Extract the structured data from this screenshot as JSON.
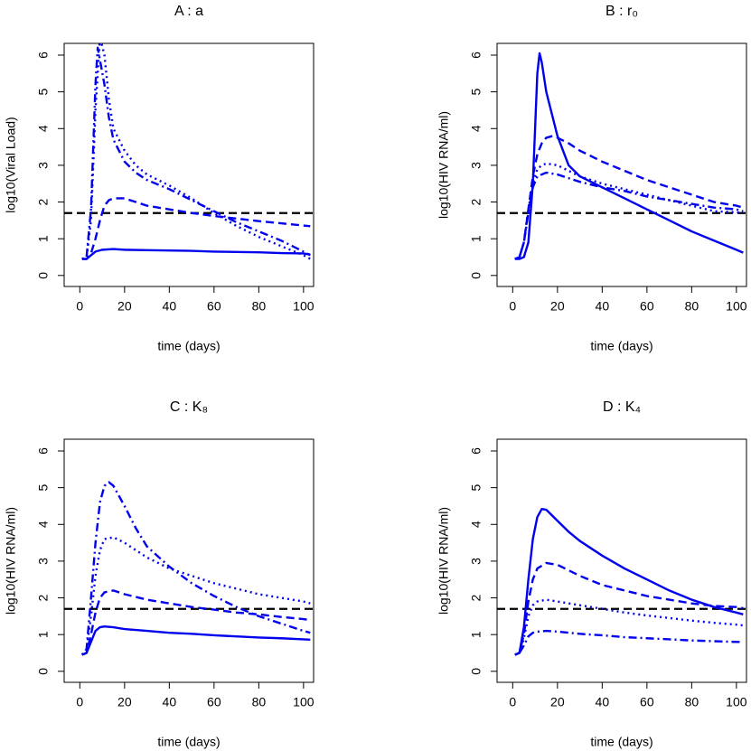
{
  "chart_data": [
    {
      "type": "line",
      "title": "A : a",
      "xlabel": "time (days)",
      "ylabel": "log10(Viral Load)",
      "xlim": [
        -7,
        104.5
      ],
      "ylim": [
        -0.3,
        6.32
      ],
      "xticks": [
        0,
        20,
        40,
        60,
        80,
        100
      ],
      "yticks": [
        0,
        1,
        2,
        3,
        4,
        5,
        6
      ],
      "hline": 1.7,
      "hline_color": "#000000",
      "series": [
        {
          "color": "#0000ee",
          "dash": "solid",
          "x": [
            1,
            3,
            5,
            7,
            10,
            15,
            20,
            30,
            40,
            50,
            60,
            70,
            80,
            90,
            100,
            103
          ],
          "values": [
            0.45,
            0.45,
            0.55,
            0.65,
            0.7,
            0.72,
            0.7,
            0.69,
            0.68,
            0.67,
            0.65,
            0.64,
            0.63,
            0.61,
            0.6,
            0.57
          ]
        },
        {
          "color": "#0000ee",
          "dash": "dashed",
          "x": [
            1,
            3,
            5,
            7,
            9,
            11,
            13,
            15,
            20,
            25,
            30,
            40,
            50,
            60,
            70,
            80,
            90,
            100,
            103
          ],
          "values": [
            0.45,
            0.45,
            0.6,
            1.0,
            1.5,
            1.9,
            2.05,
            2.1,
            2.1,
            2.0,
            1.9,
            1.8,
            1.7,
            1.62,
            1.55,
            1.48,
            1.42,
            1.36,
            1.34
          ]
        },
        {
          "color": "#0000ee",
          "dash": "dotted",
          "x": [
            1,
            3,
            5,
            7,
            9,
            11,
            13,
            15,
            20,
            25,
            30,
            40,
            50,
            60,
            70,
            80,
            90,
            100,
            103
          ],
          "values": [
            0.45,
            0.5,
            1.5,
            4.5,
            6.5,
            6.0,
            4.8,
            4.0,
            3.4,
            3.0,
            2.75,
            2.45,
            2.1,
            1.7,
            1.35,
            1.05,
            0.8,
            0.55,
            0.45
          ]
        },
        {
          "color": "#0000ee",
          "dash": "dotdash",
          "x": [
            1,
            3,
            5,
            7,
            8,
            11,
            13,
            15,
            20,
            25,
            30,
            40,
            50,
            60,
            70,
            80,
            90,
            100,
            103
          ],
          "values": [
            0.45,
            0.5,
            1.8,
            5.2,
            6.2,
            5.2,
            4.3,
            3.7,
            3.1,
            2.8,
            2.6,
            2.35,
            2.05,
            1.75,
            1.45,
            1.2,
            0.95,
            0.65,
            0.55
          ]
        }
      ]
    },
    {
      "type": "line",
      "title": "B : r₀",
      "xlabel": "time (days)",
      "ylabel": "log10(HIV RNA/ml)",
      "xlim": [
        -7,
        104.5
      ],
      "ylim": [
        -0.3,
        6.32
      ],
      "xticks": [
        0,
        20,
        40,
        60,
        80,
        100
      ],
      "yticks": [
        0,
        1,
        2,
        3,
        4,
        5,
        6
      ],
      "hline": 1.7,
      "hline_color": "#000000",
      "series": [
        {
          "color": "#0000ee",
          "dash": "solid",
          "x": [
            1,
            3,
            5,
            7,
            9,
            11,
            12,
            13,
            15,
            20,
            25,
            30,
            40,
            50,
            60,
            70,
            80,
            90,
            100,
            103
          ],
          "values": [
            0.45,
            0.45,
            0.5,
            0.9,
            2.5,
            5.5,
            6.05,
            5.8,
            5.0,
            3.8,
            3.0,
            2.7,
            2.4,
            2.1,
            1.8,
            1.5,
            1.2,
            0.95,
            0.7,
            0.62
          ]
        },
        {
          "color": "#0000ee",
          "dash": "dashed",
          "x": [
            1,
            3,
            5,
            7,
            9,
            11,
            13,
            15,
            18,
            20,
            25,
            30,
            40,
            50,
            60,
            70,
            80,
            90,
            100,
            103
          ],
          "values": [
            0.45,
            0.5,
            0.9,
            1.8,
            2.7,
            3.3,
            3.6,
            3.75,
            3.8,
            3.75,
            3.6,
            3.4,
            3.1,
            2.85,
            2.6,
            2.4,
            2.2,
            2.0,
            1.9,
            1.85
          ]
        },
        {
          "color": "#0000ee",
          "dash": "dotted",
          "x": [
            1,
            3,
            5,
            7,
            9,
            11,
            13,
            15,
            20,
            25,
            30,
            40,
            50,
            60,
            70,
            80,
            90,
            100,
            103
          ],
          "values": [
            0.45,
            0.5,
            0.9,
            1.8,
            2.5,
            2.9,
            3.0,
            3.05,
            3.0,
            2.85,
            2.7,
            2.5,
            2.35,
            2.2,
            2.05,
            1.9,
            1.75,
            1.72,
            1.7
          ]
        },
        {
          "color": "#0000ee",
          "dash": "dotdash",
          "x": [
            1,
            3,
            5,
            7,
            9,
            11,
            13,
            15,
            20,
            25,
            30,
            40,
            50,
            60,
            70,
            80,
            90,
            100,
            103
          ],
          "values": [
            0.45,
            0.5,
            0.9,
            1.7,
            2.4,
            2.7,
            2.75,
            2.8,
            2.75,
            2.65,
            2.55,
            2.4,
            2.3,
            2.15,
            2.05,
            1.95,
            1.85,
            1.8,
            1.75
          ]
        }
      ]
    },
    {
      "type": "line",
      "title": "C : K₈",
      "xlabel": "time (days)",
      "ylabel": "log10(HIV RNA/ml)",
      "xlim": [
        -7,
        104.5
      ],
      "ylim": [
        -0.3,
        6.32
      ],
      "xticks": [
        0,
        20,
        40,
        60,
        80,
        100
      ],
      "yticks": [
        0,
        1,
        2,
        3,
        4,
        5,
        6
      ],
      "hline": 1.7,
      "hline_color": "#000000",
      "series": [
        {
          "color": "#0000ee",
          "dash": "solid",
          "x": [
            1,
            3,
            5,
            7,
            9,
            11,
            15,
            20,
            30,
            40,
            50,
            60,
            70,
            80,
            90,
            100,
            103
          ],
          "values": [
            0.45,
            0.5,
            0.8,
            1.1,
            1.2,
            1.22,
            1.2,
            1.15,
            1.1,
            1.05,
            1.02,
            0.98,
            0.95,
            0.92,
            0.9,
            0.87,
            0.86
          ]
        },
        {
          "color": "#0000ee",
          "dash": "dashed",
          "x": [
            1,
            3,
            5,
            7,
            9,
            11,
            15,
            20,
            30,
            40,
            50,
            60,
            70,
            80,
            90,
            100,
            103
          ],
          "values": [
            0.45,
            0.5,
            1.0,
            1.6,
            2.0,
            2.15,
            2.2,
            2.1,
            1.95,
            1.85,
            1.75,
            1.68,
            1.6,
            1.55,
            1.48,
            1.42,
            1.4
          ]
        },
        {
          "color": "#0000ee",
          "dash": "dotted",
          "x": [
            1,
            3,
            5,
            7,
            9,
            11,
            15,
            20,
            30,
            40,
            50,
            60,
            70,
            80,
            90,
            100,
            103
          ],
          "values": [
            0.45,
            0.6,
            1.5,
            2.6,
            3.3,
            3.6,
            3.65,
            3.5,
            3.1,
            2.8,
            2.6,
            2.4,
            2.25,
            2.1,
            2.0,
            1.9,
            1.85
          ]
        },
        {
          "color": "#0000ee",
          "dash": "dotdash",
          "x": [
            1,
            3,
            5,
            7,
            9,
            11,
            13,
            15,
            20,
            25,
            30,
            40,
            50,
            60,
            70,
            80,
            90,
            100,
            103
          ],
          "values": [
            0.45,
            0.6,
            2.0,
            3.5,
            4.6,
            5.05,
            5.15,
            5.05,
            4.5,
            3.9,
            3.4,
            2.85,
            2.4,
            2.05,
            1.75,
            1.5,
            1.3,
            1.1,
            1.05
          ]
        }
      ]
    },
    {
      "type": "line",
      "title": "D : K₄",
      "xlabel": "time (days)",
      "ylabel": "log10(HIV RNA/ml)",
      "xlim": [
        -7,
        104.5
      ],
      "ylim": [
        -0.3,
        6.32
      ],
      "xticks": [
        0,
        20,
        40,
        60,
        80,
        100
      ],
      "yticks": [
        0,
        1,
        2,
        3,
        4,
        5,
        6
      ],
      "hline": 1.7,
      "hline_color": "#000000",
      "series": [
        {
          "color": "#0000ee",
          "dash": "solid",
          "x": [
            1,
            3,
            5,
            7,
            9,
            11,
            13,
            15,
            20,
            25,
            30,
            40,
            50,
            60,
            70,
            80,
            90,
            100,
            103
          ],
          "values": [
            0.45,
            0.5,
            1.2,
            2.5,
            3.6,
            4.2,
            4.42,
            4.4,
            4.1,
            3.8,
            3.55,
            3.15,
            2.8,
            2.5,
            2.2,
            1.95,
            1.75,
            1.6,
            1.55
          ]
        },
        {
          "color": "#0000ee",
          "dash": "dashed",
          "x": [
            1,
            3,
            5,
            7,
            9,
            11,
            15,
            20,
            25,
            30,
            40,
            50,
            60,
            70,
            80,
            90,
            100,
            103
          ],
          "values": [
            0.45,
            0.5,
            1.0,
            1.9,
            2.5,
            2.8,
            2.95,
            2.9,
            2.75,
            2.6,
            2.35,
            2.2,
            2.05,
            1.95,
            1.85,
            1.78,
            1.75,
            1.72
          ]
        },
        {
          "color": "#0000ee",
          "dash": "dotted",
          "x": [
            1,
            3,
            5,
            7,
            9,
            11,
            15,
            20,
            30,
            40,
            50,
            60,
            70,
            80,
            90,
            100,
            103
          ],
          "values": [
            0.45,
            0.5,
            0.9,
            1.5,
            1.8,
            1.9,
            1.95,
            1.9,
            1.8,
            1.7,
            1.6,
            1.52,
            1.45,
            1.38,
            1.32,
            1.27,
            1.25
          ]
        },
        {
          "color": "#0000ee",
          "dash": "dotdash",
          "x": [
            1,
            3,
            5,
            7,
            9,
            11,
            15,
            20,
            30,
            40,
            50,
            60,
            70,
            80,
            90,
            100,
            103
          ],
          "values": [
            0.45,
            0.5,
            0.7,
            0.95,
            1.05,
            1.08,
            1.1,
            1.08,
            1.02,
            0.98,
            0.93,
            0.9,
            0.87,
            0.84,
            0.82,
            0.8,
            0.8
          ]
        }
      ]
    }
  ]
}
